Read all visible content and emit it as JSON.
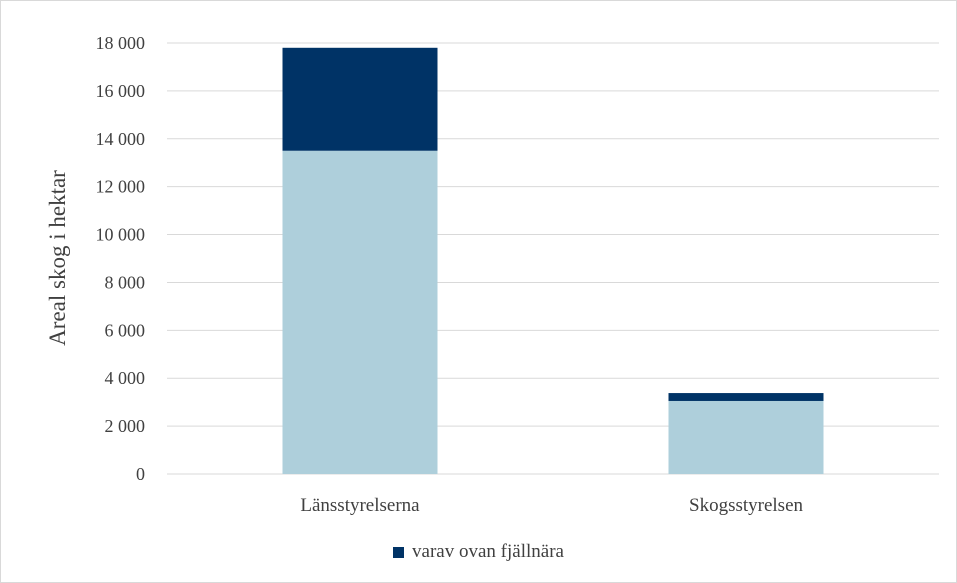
{
  "chart_data": {
    "type": "bar",
    "stacked": true,
    "categories": [
      "Länsstyrelserna",
      "Skogsstyrelsen"
    ],
    "series": [
      {
        "values": [
          13500,
          3050
        ],
        "color": "#aecfdb"
      },
      {
        "name": "varav ovan fjällnära",
        "values": [
          4300,
          330
        ],
        "color": "#003366"
      }
    ],
    "ylabel": "Areal skog i hektar",
    "ylim": [
      0,
      18000
    ],
    "yticks": [
      0,
      2000,
      4000,
      6000,
      8000,
      10000,
      12000,
      14000,
      16000,
      18000
    ],
    "ytick_labels": [
      "0",
      "2 000",
      "4 000",
      "6 000",
      "8 000",
      "10 000",
      "12 000",
      "14 000",
      "16 000",
      "18 000"
    ],
    "grid": true,
    "legend_position": "bottom"
  }
}
